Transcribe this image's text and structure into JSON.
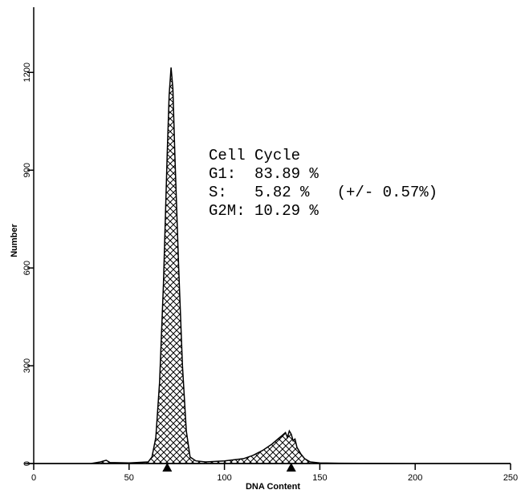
{
  "chart_data": {
    "type": "area",
    "x_label": "DNA Content",
    "y_label": "Number",
    "x": [
      0,
      30,
      35,
      38,
      40,
      50,
      60,
      62,
      64,
      66,
      68,
      70,
      71,
      72,
      73,
      74,
      76,
      78,
      80,
      82,
      85,
      90,
      100,
      110,
      115,
      120,
      125,
      128,
      130,
      132,
      133,
      134,
      135,
      136,
      137,
      138,
      140,
      142,
      145,
      150,
      160,
      200,
      250
    ],
    "values": [
      0,
      0,
      5,
      10,
      3,
      2,
      5,
      20,
      80,
      250,
      550,
      950,
      1130,
      1215,
      1150,
      950,
      600,
      300,
      100,
      20,
      8,
      5,
      8,
      15,
      25,
      40,
      60,
      75,
      85,
      95,
      80,
      100,
      90,
      70,
      75,
      50,
      30,
      15,
      5,
      2,
      1,
      0,
      0
    ],
    "color": "#000000",
    "peak_markers": [
      70,
      135
    ],
    "xlim": [
      0,
      250
    ],
    "xticks": [
      0,
      50,
      100,
      150,
      200,
      250
    ],
    "ylim": [
      0,
      1400
    ],
    "yticks": [
      0,
      300,
      600,
      900,
      1200
    ],
    "annotations": [
      "Cell Cycle",
      "G1:  83.89 %",
      "S:   5.82 %   (+/- 0.57%)",
      "G2M: 10.29 %"
    ]
  }
}
